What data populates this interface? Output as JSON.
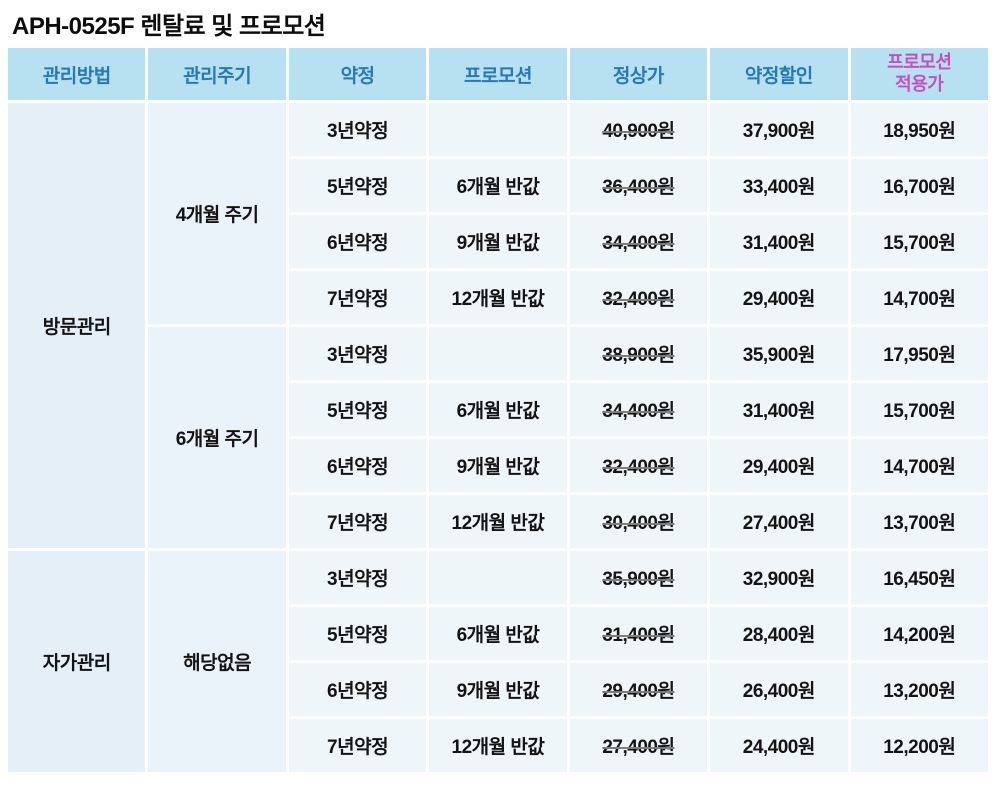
{
  "title": "APH-0525F 렌탈료 및 프로모션",
  "table": {
    "headers": {
      "method": "관리방법",
      "cycle": "관리주기",
      "contract": "약정",
      "promotion": "프로모션",
      "regular_price": "정상가",
      "contract_discount": "약정할인",
      "promo_price_line1": "프로모션",
      "promo_price_line2": "적용가"
    },
    "groups": {
      "visit_method": "방문관리",
      "visit_cycle_4m": "4개월 주기",
      "visit_cycle_6m": "6개월 주기",
      "self_method": "자가관리",
      "self_cycle": "해당없음"
    },
    "rows": [
      {
        "contract": "3년약정",
        "promotion": "",
        "regular": "40,900원",
        "discount": "37,900원",
        "promo_price": "18,950원"
      },
      {
        "contract": "5년약정",
        "promotion": "6개월 반값",
        "regular": "36,400원",
        "discount": "33,400원",
        "promo_price": "16,700원"
      },
      {
        "contract": "6년약정",
        "promotion": "9개월 반값",
        "regular": "34,400원",
        "discount": "31,400원",
        "promo_price": "15,700원"
      },
      {
        "contract": "7년약정",
        "promotion": "12개월 반값",
        "regular": "32,400원",
        "discount": "29,400원",
        "promo_price": "14,700원"
      },
      {
        "contract": "3년약정",
        "promotion": "",
        "regular": "38,900원",
        "discount": "35,900원",
        "promo_price": "17,950원"
      },
      {
        "contract": "5년약정",
        "promotion": "6개월 반값",
        "regular": "34,400원",
        "discount": "31,400원",
        "promo_price": "15,700원"
      },
      {
        "contract": "6년약정",
        "promotion": "9개월 반값",
        "regular": "32,400원",
        "discount": "29,400원",
        "promo_price": "14,700원"
      },
      {
        "contract": "7년약정",
        "promotion": "12개월 반값",
        "regular": "30,400원",
        "discount": "27,400원",
        "promo_price": "13,700원"
      },
      {
        "contract": "3년약정",
        "promotion": "",
        "regular": "35,900원",
        "discount": "32,900원",
        "promo_price": "16,450원"
      },
      {
        "contract": "5년약정",
        "promotion": "6개월 반값",
        "regular": "31,400원",
        "discount": "28,400원",
        "promo_price": "14,200원"
      },
      {
        "contract": "6년약정",
        "promotion": "9개월 반값",
        "regular": "29,400원",
        "discount": "26,400원",
        "promo_price": "13,200원"
      },
      {
        "contract": "7년약정",
        "promotion": "12개월 반값",
        "regular": "27,400원",
        "discount": "24,400원",
        "promo_price": "12,200원"
      }
    ]
  },
  "colors": {
    "header_bg": "#b7e1f1",
    "header_text": "#2778b6",
    "promo_header_text": "#c44fbe",
    "promo_value_text": "#c36ed2",
    "method_cell_bg": "#e4eff8",
    "cycle_cell_bg": "#eaf3f9",
    "data_cell_bg": "#eef6fa",
    "body_text": "#141414",
    "strikethrough_line": "#7d7d7d",
    "cell_gap": "#ffffff"
  },
  "chart_data": {
    "type": "table",
    "title": "APH-0525F 렌탈료 및 프로모션",
    "columns": [
      "관리방법",
      "관리주기",
      "약정",
      "프로모션",
      "정상가",
      "약정할인",
      "프로모션 적용가"
    ],
    "rows": [
      [
        "방문관리",
        "4개월 주기",
        "3년약정",
        "",
        "40,900원",
        "37,900원",
        "18,950원"
      ],
      [
        "방문관리",
        "4개월 주기",
        "5년약정",
        "6개월 반값",
        "36,400원",
        "33,400원",
        "16,700원"
      ],
      [
        "방문관리",
        "4개월 주기",
        "6년약정",
        "9개월 반값",
        "34,400원",
        "31,400원",
        "15,700원"
      ],
      [
        "방문관리",
        "4개월 주기",
        "7년약정",
        "12개월 반값",
        "32,400원",
        "29,400원",
        "14,700원"
      ],
      [
        "방문관리",
        "6개월 주기",
        "3년약정",
        "",
        "38,900원",
        "35,900원",
        "17,950원"
      ],
      [
        "방문관리",
        "6개월 주기",
        "5년약정",
        "6개월 반값",
        "34,400원",
        "31,400원",
        "15,700원"
      ],
      [
        "방문관리",
        "6개월 주기",
        "6년약정",
        "9개월 반값",
        "32,400원",
        "29,400원",
        "14,700원"
      ],
      [
        "방문관리",
        "6개월 주기",
        "7년약정",
        "12개월 반값",
        "30,400원",
        "27,400원",
        "13,700원"
      ],
      [
        "자가관리",
        "해당없음",
        "3년약정",
        "",
        "35,900원",
        "32,900원",
        "16,450원"
      ],
      [
        "자가관리",
        "해당없음",
        "5년약정",
        "6개월 반값",
        "31,400원",
        "28,400원",
        "14,200원"
      ],
      [
        "자가관리",
        "해당없음",
        "6년약정",
        "9개월 반값",
        "29,400원",
        "26,400원",
        "13,200원"
      ],
      [
        "자가관리",
        "해당없음",
        "7년약정",
        "12개월 반값",
        "27,400원",
        "24,400원",
        "12,200원"
      ]
    ],
    "notes": "정상가 column values are struck through; 프로모션 적용가 column shown in pink; header row light blue with blue text except 프로모션 적용가 header in magenta."
  }
}
